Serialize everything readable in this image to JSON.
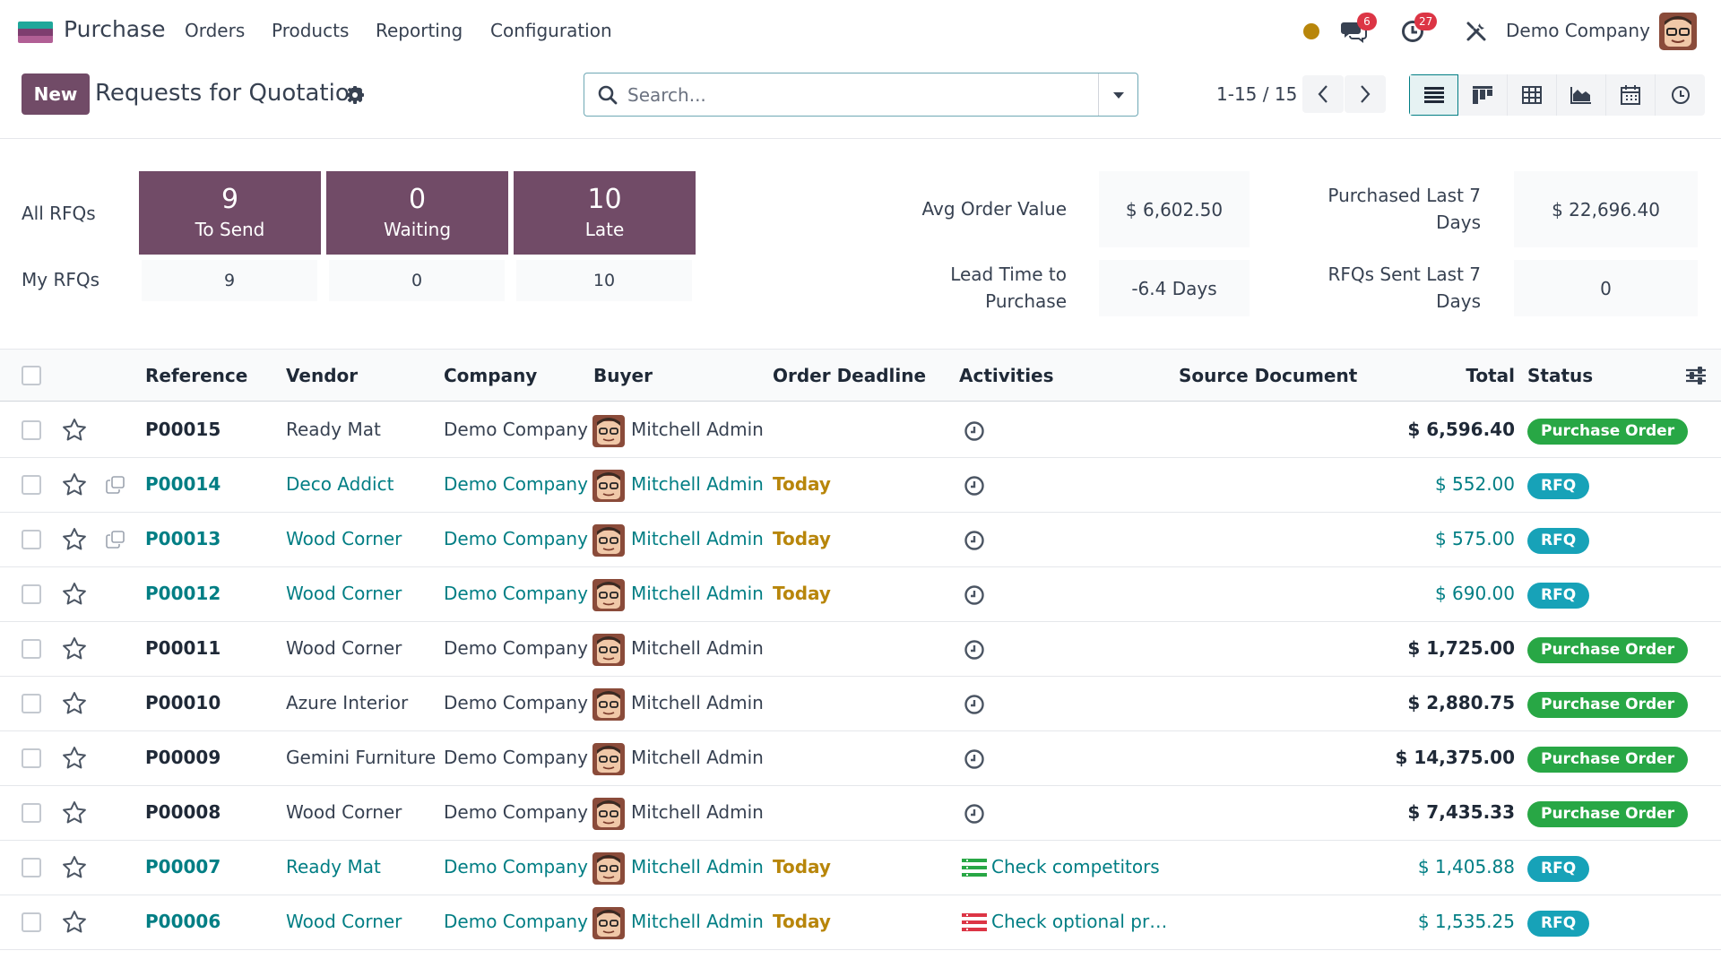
{
  "navbar": {
    "app_name": "Purchase",
    "menus": [
      "Orders",
      "Products",
      "Reporting",
      "Configuration"
    ],
    "messages_count": "6",
    "activities_count": "27",
    "company": "Demo Company"
  },
  "control": {
    "new_label": "New",
    "title": "Requests for Quotation",
    "search_placeholder": "Search...",
    "pager": "1-15 / 15"
  },
  "dashboard": {
    "all_label": "All RFQs",
    "my_label": "My RFQs",
    "tiles": [
      {
        "num": "9",
        "label": "To Send",
        "my": "9"
      },
      {
        "num": "0",
        "label": "Waiting",
        "my": "0"
      },
      {
        "num": "10",
        "label": "Late",
        "my": "10"
      }
    ],
    "kpis": {
      "avg_label": "Avg Order Value",
      "avg_value": "$ 6,602.50",
      "lead_label_1": "Lead Time to",
      "lead_label_2": "Purchase",
      "lead_value": "-6.4 Days",
      "purchased_label_1": "Purchased Last 7",
      "purchased_label_2": "Days",
      "purchased_value": "$ 22,696.40",
      "sent_label_1": "RFQs Sent Last 7",
      "sent_label_2": "Days",
      "sent_value": "0"
    }
  },
  "table": {
    "headers": {
      "reference": "Reference",
      "vendor": "Vendor",
      "company": "Company",
      "buyer": "Buyer",
      "deadline": "Order Deadline",
      "activities": "Activities",
      "source": "Source Document",
      "total": "Total",
      "status": "Status"
    },
    "rows": [
      {
        "ref": "P00015",
        "vendor": "Ready Mat",
        "company": "Demo Company",
        "buyer": "Mitchell Admin",
        "deadline": "",
        "activity": "",
        "total": "$ 6,596.40",
        "status": "Purchase Order"
      },
      {
        "ref": "P00014",
        "vendor": "Deco Addict",
        "company": "Demo Company",
        "buyer": "Mitchell Admin",
        "deadline": "Today",
        "activity": "",
        "total": "$ 552.00",
        "status": "RFQ"
      },
      {
        "ref": "P00013",
        "vendor": "Wood Corner",
        "company": "Demo Company",
        "buyer": "Mitchell Admin",
        "deadline": "Today",
        "activity": "",
        "total": "$ 575.00",
        "status": "RFQ"
      },
      {
        "ref": "P00012",
        "vendor": "Wood Corner",
        "company": "Demo Company",
        "buyer": "Mitchell Admin",
        "deadline": "Today",
        "activity": "",
        "total": "$ 690.00",
        "status": "RFQ"
      },
      {
        "ref": "P00011",
        "vendor": "Wood Corner",
        "company": "Demo Company",
        "buyer": "Mitchell Admin",
        "deadline": "",
        "activity": "",
        "total": "$ 1,725.00",
        "status": "Purchase Order"
      },
      {
        "ref": "P00010",
        "vendor": "Azure Interior",
        "company": "Demo Company",
        "buyer": "Mitchell Admin",
        "deadline": "",
        "activity": "",
        "total": "$ 2,880.75",
        "status": "Purchase Order"
      },
      {
        "ref": "P00009",
        "vendor": "Gemini Furniture",
        "company": "Demo Company",
        "buyer": "Mitchell Admin",
        "deadline": "",
        "activity": "",
        "total": "$ 14,375.00",
        "status": "Purchase Order"
      },
      {
        "ref": "P00008",
        "vendor": "Wood Corner",
        "company": "Demo Company",
        "buyer": "Mitchell Admin",
        "deadline": "",
        "activity": "",
        "total": "$ 7,435.33",
        "status": "Purchase Order"
      },
      {
        "ref": "P00007",
        "vendor": "Ready Mat",
        "company": "Demo Company",
        "buyer": "Mitchell Admin",
        "deadline": "Today",
        "activity": "Check competitors",
        "total": "$ 1,405.88",
        "status": "RFQ"
      },
      {
        "ref": "P00006",
        "vendor": "Wood Corner",
        "company": "Demo Company",
        "buyer": "Mitchell Admin",
        "deadline": "Today",
        "activity": "Check optional pr…",
        "total": "$ 1,535.25",
        "status": "RFQ"
      }
    ]
  },
  "colors": {
    "brand": "#714b67",
    "link": "#017e84",
    "po_badge": "#28a745",
    "rfq_badge": "#17a2b8",
    "deadline": "#b8860b"
  }
}
